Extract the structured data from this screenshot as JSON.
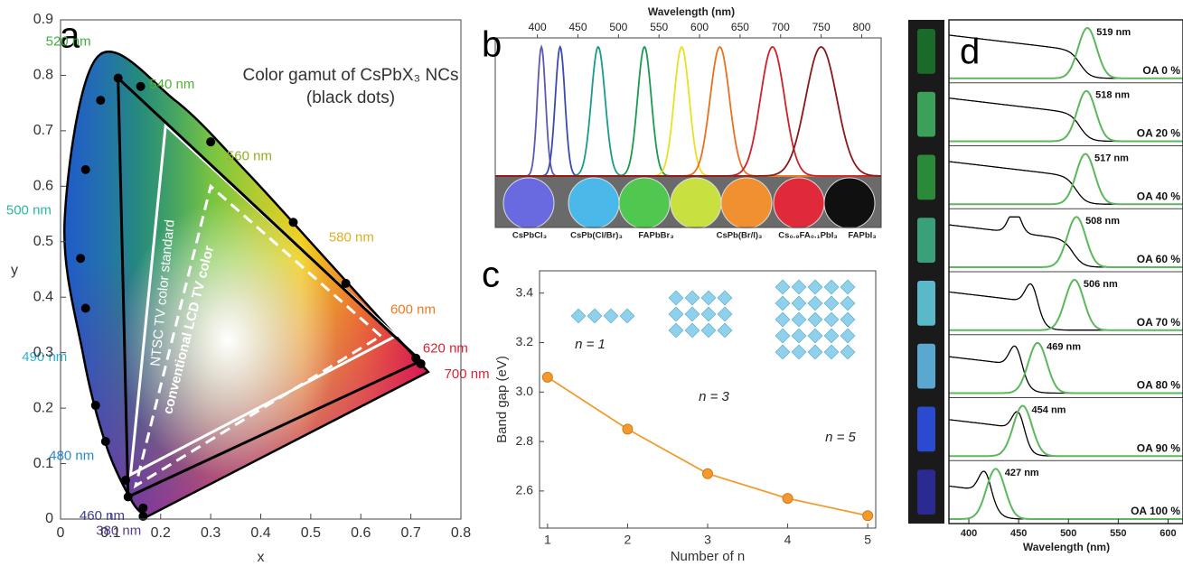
{
  "chart_data": [
    {
      "type": "cie",
      "label": "a",
      "title": "Color gamut of CsPbX₃ NCs",
      "subtitle": "(black dots)",
      "xlabel": "x",
      "ylabel": "y",
      "xlim": [
        0,
        0.8
      ],
      "ylim": [
        0,
        0.9
      ],
      "xticks": [
        0,
        0.1,
        0.2,
        0.3,
        0.4,
        0.5,
        0.6,
        0.7,
        0.8
      ],
      "yticks": [
        0,
        0.1,
        0.2,
        0.3,
        0.4,
        0.5,
        0.6,
        0.7,
        0.8,
        0.9
      ],
      "locus": {
        "x": [
          0.1741,
          0.144,
          0.0913,
          0.0454,
          0.0082,
          0.0743,
          0.2296,
          0.3731,
          0.5125,
          0.627,
          0.6915,
          0.7347
        ],
        "y": [
          0.005,
          0.03,
          0.1327,
          0.295,
          0.5384,
          0.8338,
          0.7543,
          0.6245,
          0.4866,
          0.3725,
          0.3083,
          0.2653
        ],
        "labels": [
          "380 nm",
          "460 nm",
          "480 nm",
          "490 nm",
          "500 nm",
          "520 nm",
          "540 nm",
          "560 nm",
          "580 nm",
          "600 nm",
          "620 nm",
          "700 nm"
        ],
        "label_colors": [
          "#5a3a9a",
          "#3a3aa0",
          "#2a8ad0",
          "#2ab0d8",
          "#2ab8a0",
          "#40b040",
          "#50b030",
          "#90b020",
          "#e0b020",
          "#f07a20",
          "#e02030",
          "#e02030"
        ]
      },
      "gamuts": [
        {
          "name": "NTSC TV color standard",
          "color": "#ffffff",
          "dashed": false,
          "x": [
            0.67,
            0.21,
            0.14
          ],
          "y": [
            0.33,
            0.71,
            0.08
          ]
        },
        {
          "name": "conventional LCD TV color",
          "color": "#ffffff",
          "dashed": true,
          "x": [
            0.64,
            0.3,
            0.15
          ],
          "y": [
            0.33,
            0.6,
            0.06
          ]
        },
        {
          "color": "#000000",
          "dashed": false,
          "x": [
            0.72,
            0.115,
            0.135
          ],
          "y": [
            0.285,
            0.795,
            0.04
          ]
        }
      ],
      "points": {
        "color": "#000000",
        "x": [
          0.115,
          0.16,
          0.08,
          0.05,
          0.04,
          0.05,
          0.07,
          0.09,
          0.13,
          0.165,
          0.165,
          0.3,
          0.465,
          0.57,
          0.71,
          0.72,
          0.135
        ],
        "y": [
          0.795,
          0.78,
          0.755,
          0.63,
          0.47,
          0.38,
          0.205,
          0.14,
          0.07,
          0.02,
          0.005,
          0.68,
          0.535,
          0.425,
          0.29,
          0.28,
          0.04
        ]
      }
    },
    {
      "type": "spectra",
      "label": "b",
      "xlabel": "Wavelength (nm)",
      "xlim": [
        348,
        824
      ],
      "xticks": [
        400,
        450,
        500,
        550,
        600,
        650,
        700,
        750,
        800
      ],
      "series": [
        {
          "color": "#5a5ab0",
          "peak": 405,
          "width": 12
        },
        {
          "color": "#3a4ab0",
          "peak": 428,
          "width": 14
        },
        {
          "color": "#1a9a8a",
          "peak": 475,
          "width": 20
        },
        {
          "color": "#1a9a50",
          "peak": 532,
          "width": 20
        },
        {
          "color": "#e8e020",
          "peak": 578,
          "width": 22
        },
        {
          "color": "#e87020",
          "peak": 625,
          "width": 28
        },
        {
          "color": "#d0202a",
          "peak": 690,
          "width": 35
        },
        {
          "color": "#8a1818",
          "peak": 750,
          "width": 45
        }
      ],
      "samples": [
        "CsPbCl₃",
        "CsPb(Cl/Br)₃",
        "FAPbBr₃",
        "CsPb(Br/I)₃",
        "Cs₀.₉FA₀.₁PbI₃",
        "FAPbI₃"
      ]
    },
    {
      "type": "line",
      "label": "c",
      "xlabel": "Number of n",
      "ylabel": "Band gap (eV)",
      "x": [
        1,
        2,
        3,
        4,
        5
      ],
      "values": [
        3.06,
        2.85,
        2.67,
        2.57,
        2.5
      ],
      "color": "#f39a2e",
      "xlim": [
        0.9,
        5.1
      ],
      "ylim": [
        2.45,
        3.49
      ],
      "xticks": [
        1,
        2,
        3,
        4,
        5
      ],
      "yticks": [
        2.6,
        2.8,
        {
          "value": 3,
          "label": "3.0"
        },
        3.2,
        3.4
      ],
      "annotations": [
        "n = 1",
        "n = 3",
        "n = 5"
      ]
    },
    {
      "type": "stacked-spectra",
      "label": "d",
      "xlabel": "Wavelength (nm)",
      "xlim": [
        380,
        615
      ],
      "xticks": [
        400,
        450,
        500,
        550,
        600
      ],
      "pl_color": "#5cb85c",
      "abs_color": "#000000",
      "rows": [
        {
          "label": "OA 0 %",
          "peak": 519,
          "peak_label": "519 nm",
          "abs_edge": 512,
          "abs_peak": null
        },
        {
          "label": "OA 20 %",
          "peak": 518,
          "peak_label": "518 nm",
          "abs_edge": 512,
          "abs_peak": null
        },
        {
          "label": "OA 40 %",
          "peak": 517,
          "peak_label": "517 nm",
          "abs_edge": 508,
          "abs_peak": null
        },
        {
          "label": "OA 60 %",
          "peak": 508,
          "peak_label": "508 nm",
          "abs_edge": 505,
          "abs_peak": 446
        },
        {
          "label": "OA 70 %",
          "peak": 506,
          "peak_label": "506 nm",
          "abs_edge": 470,
          "abs_peak": 463
        },
        {
          "label": "OA 80 %",
          "peak": 469,
          "peak_label": "469 nm",
          "abs_edge": 455,
          "abs_peak": 447
        },
        {
          "label": "OA 90 %",
          "peak": 454,
          "peak_label": "454 nm",
          "abs_edge": 455,
          "abs_peak": 450
        },
        {
          "label": "OA 100 %",
          "peak": 427,
          "peak_label": "427 nm",
          "abs_edge": 425,
          "abs_peak": 416
        }
      ]
    }
  ]
}
